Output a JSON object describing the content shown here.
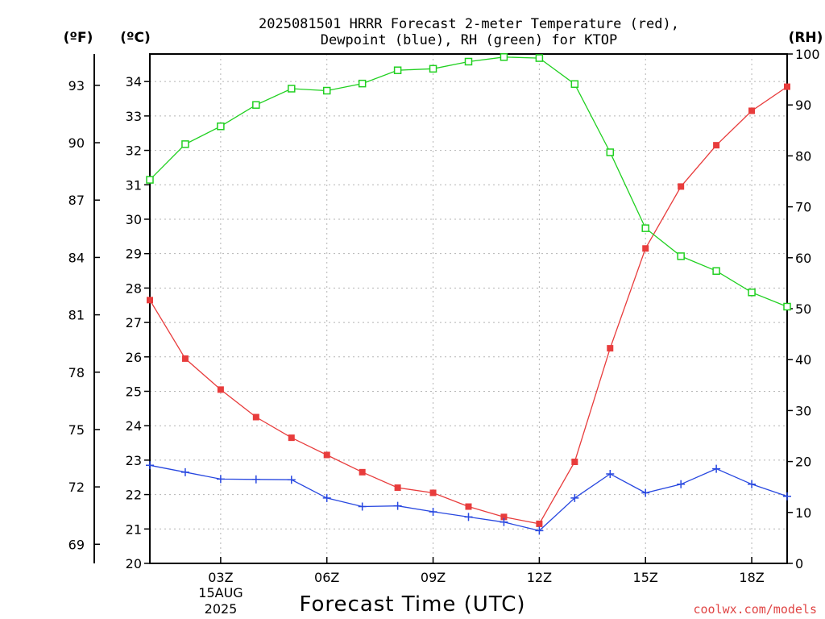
{
  "title_lines": [
    "2025081501 HRRR Forecast 2-meter Temperature (red),",
    "Dewpoint (blue), RH (green) for KTOP"
  ],
  "credit": "coolwx.com/models",
  "chart_data": {
    "type": "line",
    "title": "2025081501 HRRR Forecast 2-meter Temperature (red), Dewpoint (blue), RH (green) for KTOP",
    "xlabel": "Forecast Time (UTC)",
    "x": [
      "01Z",
      "02Z",
      "03Z",
      "04Z",
      "05Z",
      "06Z",
      "07Z",
      "08Z",
      "09Z",
      "10Z",
      "11Z",
      "12Z",
      "13Z",
      "14Z",
      "15Z",
      "16Z",
      "17Z",
      "18Z",
      "19Z"
    ],
    "xlim": [
      "01Z",
      "19Z"
    ],
    "x_tick_labels": [
      "03Z",
      "06Z",
      "09Z",
      "12Z",
      "15Z",
      "18Z"
    ],
    "x_date_label": [
      "15AUG",
      "2025"
    ],
    "axes": {
      "fahrenheit": {
        "label": "(ºF)",
        "side": "left-outer",
        "ticks": [
          "69",
          "72",
          "75",
          "78",
          "81",
          "84",
          "87",
          "90",
          "93"
        ]
      },
      "celsius": {
        "label": "(ºC)",
        "side": "left",
        "ylim": [
          20,
          34.8
        ],
        "ticks": [
          "20",
          "21",
          "22",
          "23",
          "24",
          "25",
          "26",
          "27",
          "28",
          "29",
          "30",
          "31",
          "32",
          "33",
          "34"
        ]
      },
      "rh": {
        "label": "(RH)",
        "side": "right",
        "ylim": [
          0,
          100
        ],
        "ticks": [
          "0",
          "10",
          "20",
          "30",
          "40",
          "50",
          "60",
          "70",
          "80",
          "90",
          "100"
        ]
      }
    },
    "grid": true,
    "series": [
      {
        "color": "#e83c3c",
        "marker": "filled-square",
        "axis": "celsius",
        "values": [
          27.65,
          25.95,
          25.05,
          24.25,
          23.65,
          23.15,
          22.65,
          22.2,
          22.05,
          21.65,
          21.35,
          21.15,
          22.95,
          26.25,
          29.15,
          30.95,
          32.15,
          33.15,
          33.85
        ]
      },
      {
        "color": "#2848e0",
        "marker": "plus",
        "axis": "celsius",
        "values": [
          22.85,
          22.65,
          22.45,
          22.44,
          22.43,
          21.9,
          21.65,
          21.67,
          21.5,
          21.35,
          21.2,
          20.95,
          21.9,
          22.6,
          22.05,
          22.3,
          22.75,
          22.3,
          21.95
        ]
      },
      {
        "color": "#20d020",
        "marker": "open-square",
        "axis": "rh",
        "values": [
          75.3,
          82.3,
          85.8,
          90.0,
          93.2,
          92.8,
          94.2,
          96.8,
          97.1,
          98.5,
          99.4,
          99.2,
          94.1,
          80.7,
          65.8,
          60.3,
          57.4,
          53.2,
          50.4
        ]
      }
    ]
  }
}
